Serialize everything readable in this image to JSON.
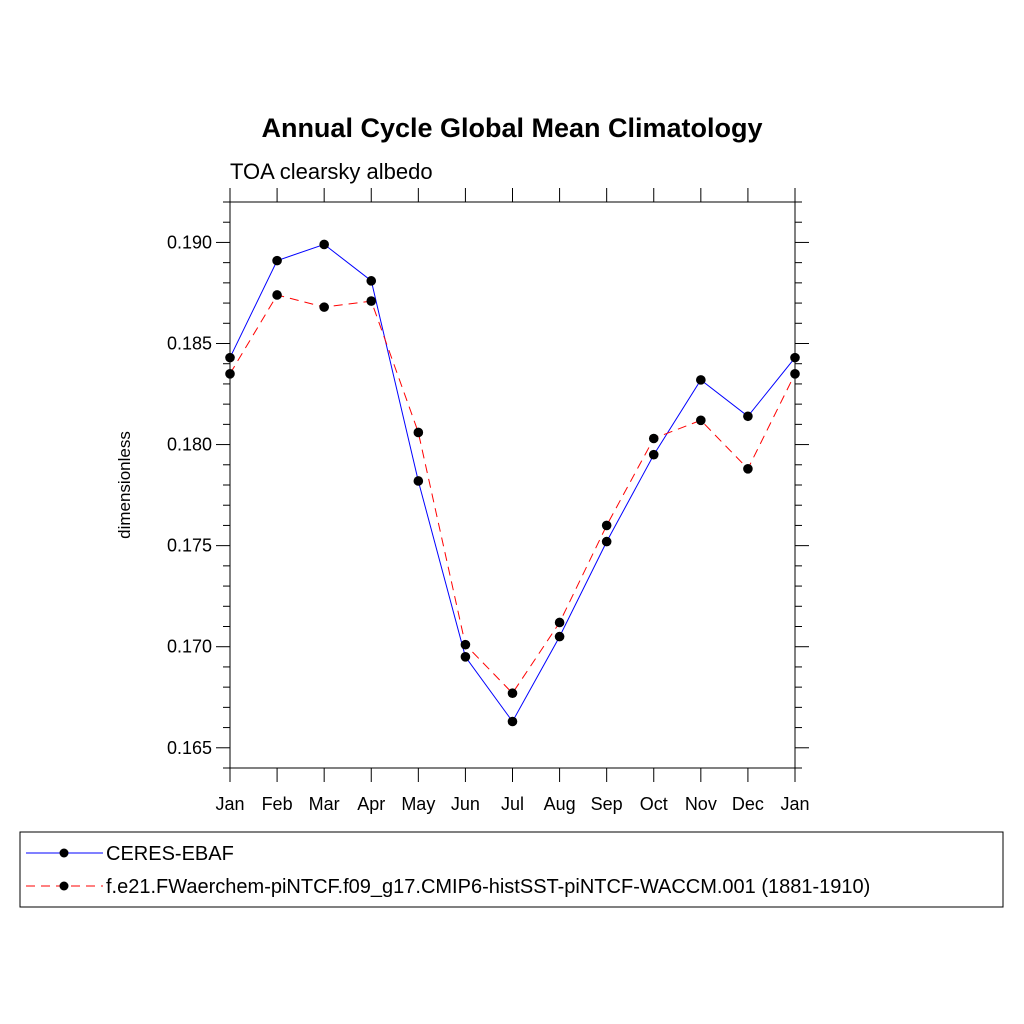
{
  "chart_data": {
    "type": "line",
    "title": "Annual Cycle Global Mean Climatology",
    "subtitle": "TOA clearsky albedo",
    "xlabel": "",
    "ylabel": "dimensionless",
    "categories": [
      "Jan",
      "Feb",
      "Mar",
      "Apr",
      "May",
      "Jun",
      "Jul",
      "Aug",
      "Sep",
      "Oct",
      "Nov",
      "Dec",
      "Jan"
    ],
    "ylim": [
      0.164,
      0.192
    ],
    "yticks": [
      "0.165",
      "0.170",
      "0.175",
      "0.180",
      "0.185",
      "0.190"
    ],
    "grid": false,
    "legend_position": "bottom",
    "series": [
      {
        "name": "CERES-EBAF",
        "color": "#0000ff",
        "line_style": "solid",
        "marker": "filled-circle",
        "values": [
          0.1843,
          0.1891,
          0.1899,
          0.1881,
          0.1782,
          0.1695,
          0.1663,
          0.1705,
          0.1752,
          0.1795,
          0.1832,
          0.1814,
          0.1843
        ]
      },
      {
        "name": "f.e21.FWaerchem-piNTCF.f09_g17.CMIP6-histSST-piNTCF-WACCM.001 (1881-1910)",
        "color": "#ff0000",
        "line_style": "dashed",
        "marker": "filled-circle",
        "values": [
          0.1835,
          0.1874,
          0.1868,
          0.1871,
          0.1806,
          0.1701,
          0.1677,
          0.1712,
          0.176,
          0.1803,
          0.1812,
          0.1788,
          0.1835
        ]
      }
    ]
  }
}
